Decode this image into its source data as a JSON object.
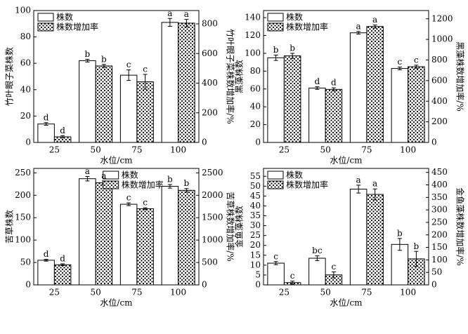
{
  "chart_data": [
    {
      "type": "bar",
      "categories": [
        "25",
        "50",
        "75",
        "100"
      ],
      "xlabel": "水位/cm",
      "ylabel": "竹叶眼子菜株数",
      "y2label": "竹叶眼子菜株数增加率/%",
      "ylim": [
        0,
        100
      ],
      "yticks": [
        0,
        20,
        40,
        60,
        80,
        100
      ],
      "y2lim": [
        0,
        890
      ],
      "y2ticks": [
        0,
        200,
        400,
        600,
        800
      ],
      "legend": "upper left",
      "series": [
        {
          "name": "株数",
          "color": "#ffffff",
          "pattern": "none",
          "values": [
            14,
            62,
            51,
            91
          ],
          "errors": [
            1,
            1,
            4,
            3
          ],
          "letters": [
            "d",
            "b",
            "c",
            "a"
          ]
        },
        {
          "name": "株数增加率",
          "color": "#ffffff",
          "pattern": "dots",
          "axis": "y2",
          "values": [
            38,
            516,
            409,
            805
          ],
          "errors": [
            8,
            10,
            50,
            25
          ],
          "letters": [
            "d",
            "b",
            "c",
            "a"
          ]
        }
      ]
    },
    {
      "type": "bar",
      "categories": [
        "25",
        "50",
        "75",
        "100"
      ],
      "xlabel": "水位/cm",
      "ylabel": "黑藻株数",
      "y2label": "黑藻株数增加率/%",
      "ylim": [
        0,
        148
      ],
      "yticks": [
        0,
        20,
        40,
        60,
        80,
        100,
        120,
        140
      ],
      "y2lim": [
        0,
        1280
      ],
      "y2ticks": [
        0,
        200,
        400,
        600,
        800,
        1000,
        1200
      ],
      "legend": "upper left",
      "series": [
        {
          "name": "株数",
          "color": "#ffffff",
          "pattern": "none",
          "values": [
            95,
            61,
            123,
            83
          ],
          "errors": [
            3,
            1.5,
            1.5,
            1.5
          ],
          "letters": [
            "b",
            "d",
            "a",
            "c"
          ]
        },
        {
          "name": "株数增加率",
          "color": "#ffffff",
          "pattern": "dots",
          "axis": "y2",
          "values": [
            840,
            515,
            1125,
            735
          ],
          "errors": [
            25,
            15,
            15,
            15
          ],
          "letters": [
            "b",
            "d",
            "a",
            "c"
          ]
        }
      ]
    },
    {
      "type": "bar",
      "categories": [
        "25",
        "50",
        "75",
        "100"
      ],
      "xlabel": "水位/cm",
      "ylabel": "苦草株数",
      "y2label": "苦草株数增加率/%",
      "ylim": [
        0,
        260
      ],
      "yticks": [
        0,
        50,
        100,
        150,
        200,
        250
      ],
      "y2lim": [
        0,
        2600
      ],
      "y2ticks": [
        0,
        500,
        1000,
        1500,
        2000,
        2500
      ],
      "legend": "upper center",
      "series": [
        {
          "name": "株数",
          "color": "#ffffff",
          "pattern": "none",
          "values": [
            55,
            237,
            180,
            220
          ],
          "errors": [
            2,
            5,
            3,
            4
          ],
          "letters": [
            "d",
            "a",
            "c",
            "b"
          ]
        },
        {
          "name": "株数增加率",
          "color": "#ffffff",
          "pattern": "dots",
          "axis": "y2",
          "values": [
            450,
            2280,
            1700,
            2110
          ],
          "errors": [
            20,
            40,
            20,
            40
          ],
          "letters": [
            "d",
            "a",
            "c",
            "b"
          ]
        }
      ]
    },
    {
      "type": "bar",
      "categories": [
        "25",
        "50",
        "75",
        "100"
      ],
      "xlabel": "水位/cm",
      "ylabel": "金鱼藻株数",
      "y2label": "金鱼藻株数增加率/%",
      "ylim": [
        0,
        59
      ],
      "yticks": [
        0,
        5,
        10,
        15,
        20,
        25,
        30,
        35,
        40,
        45,
        50,
        55
      ],
      "y2lim": [
        0,
        466
      ],
      "y2ticks": [
        0,
        50,
        100,
        150,
        200,
        250,
        300,
        350,
        400,
        450
      ],
      "legend": "upper left",
      "series": [
        {
          "name": "株数",
          "color": "#ffffff",
          "pattern": "none",
          "values": [
            11,
            13.5,
            48.5,
            20.5
          ],
          "errors": [
            0.8,
            1.2,
            2,
            3
          ],
          "letters": [
            "c",
            "bc",
            "a",
            "b"
          ]
        },
        {
          "name": "株数增加率",
          "color": "#ffffff",
          "pattern": "dots",
          "axis": "y2",
          "values": [
            9,
            40,
            362,
            104
          ],
          "errors": [
            6,
            12,
            22,
            30
          ],
          "letters": [
            "c",
            "c",
            "a",
            "b"
          ]
        }
      ]
    }
  ]
}
